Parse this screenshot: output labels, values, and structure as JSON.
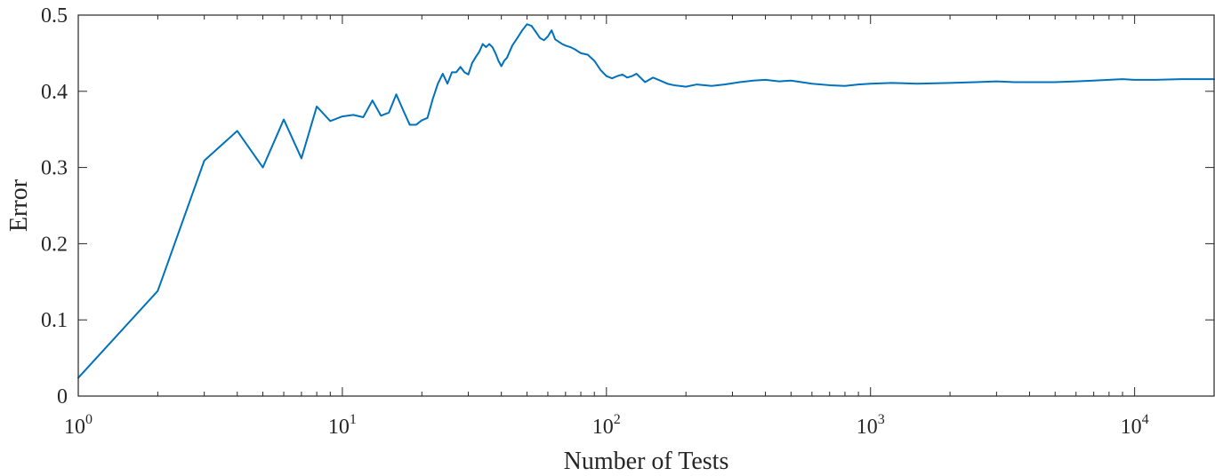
{
  "chart_data": {
    "type": "line",
    "xlabel": "Number of Tests",
    "ylabel": "Error",
    "xscale": "log",
    "xlim": [
      1,
      20000
    ],
    "ylim": [
      0,
      0.5
    ],
    "grid": false,
    "box": true,
    "line_color": "#0072BD",
    "axis_color": "#262626",
    "yticks": [
      {
        "value": 0,
        "label": "0"
      },
      {
        "value": 0.1,
        "label": "0.1"
      },
      {
        "value": 0.2,
        "label": "0.2"
      },
      {
        "value": 0.3,
        "label": "0.3"
      },
      {
        "value": 0.4,
        "label": "0.4"
      },
      {
        "value": 0.5,
        "label": "0.5"
      }
    ],
    "xticks": [
      {
        "value": 1,
        "base": "10",
        "exp": "0"
      },
      {
        "value": 10,
        "base": "10",
        "exp": "1"
      },
      {
        "value": 100,
        "base": "10",
        "exp": "2"
      },
      {
        "value": 1000,
        "base": "10",
        "exp": "3"
      },
      {
        "value": 10000,
        "base": "10",
        "exp": "4"
      }
    ],
    "series": [
      {
        "x": [
          1,
          2,
          3,
          4,
          5,
          6,
          7,
          8,
          9,
          10,
          11,
          12,
          13,
          14,
          15,
          16,
          17,
          18,
          19,
          20,
          21,
          22,
          23,
          24,
          25,
          26,
          27,
          28,
          29,
          30,
          31,
          32,
          33,
          34,
          35,
          36,
          37,
          38,
          39,
          40,
          41,
          42,
          44,
          46,
          48,
          50,
          52,
          54,
          56,
          58,
          60,
          62,
          64,
          66,
          68,
          70,
          73,
          76,
          80,
          85,
          90,
          95,
          100,
          105,
          110,
          115,
          120,
          125,
          130,
          140,
          150,
          160,
          170,
          180,
          200,
          220,
          250,
          280,
          320,
          360,
          400,
          450,
          500,
          600,
          700,
          800,
          900,
          1000,
          1200,
          1500,
          2000,
          2500,
          3000,
          3500,
          4000,
          5000,
          6000,
          7000,
          8000,
          9000,
          10000,
          12000,
          15000,
          20000
        ],
        "y": [
          0.024,
          0.138,
          0.309,
          0.348,
          0.3,
          0.363,
          0.312,
          0.38,
          0.361,
          0.367,
          0.369,
          0.366,
          0.388,
          0.368,
          0.372,
          0.396,
          0.375,
          0.356,
          0.356,
          0.362,
          0.365,
          0.39,
          0.41,
          0.423,
          0.41,
          0.425,
          0.425,
          0.432,
          0.425,
          0.422,
          0.437,
          0.445,
          0.452,
          0.462,
          0.458,
          0.462,
          0.458,
          0.45,
          0.44,
          0.433,
          0.44,
          0.444,
          0.46,
          0.47,
          0.48,
          0.488,
          0.486,
          0.478,
          0.47,
          0.467,
          0.472,
          0.48,
          0.468,
          0.465,
          0.462,
          0.46,
          0.458,
          0.455,
          0.45,
          0.448,
          0.44,
          0.428,
          0.42,
          0.417,
          0.42,
          0.422,
          0.418,
          0.42,
          0.423,
          0.412,
          0.418,
          0.414,
          0.41,
          0.408,
          0.406,
          0.409,
          0.407,
          0.409,
          0.412,
          0.414,
          0.415,
          0.413,
          0.414,
          0.41,
          0.408,
          0.407,
          0.409,
          0.41,
          0.411,
          0.41,
          0.411,
          0.412,
          0.413,
          0.412,
          0.412,
          0.412,
          0.413,
          0.414,
          0.415,
          0.416,
          0.415,
          0.415,
          0.416,
          0.416
        ]
      }
    ]
  }
}
